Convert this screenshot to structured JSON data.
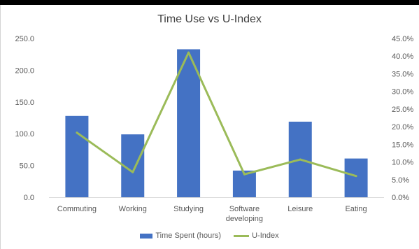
{
  "chart_data": {
    "type": "bar",
    "title": "Time Use vs U-Index",
    "categories": [
      "Commuting",
      "Working",
      "Studying",
      "Software developing",
      "Leisure",
      "Eating"
    ],
    "category_lines": [
      [
        "Commuting"
      ],
      [
        "Working"
      ],
      [
        "Studying"
      ],
      [
        "Software",
        "developing"
      ],
      [
        "Leisure"
      ],
      [
        "Eating"
      ]
    ],
    "series": [
      {
        "name": "Time Spent (hours)",
        "type": "bar",
        "axis": "left",
        "color": "#4472c4",
        "values": [
          128,
          99,
          233,
          42,
          119,
          61
        ]
      },
      {
        "name": "U-Index",
        "type": "line",
        "axis": "right",
        "color": "#9bbb59",
        "values": [
          18.3,
          7.1,
          41.0,
          6.5,
          10.7,
          6.0
        ]
      }
    ],
    "y_left": {
      "min": 0,
      "max": 250,
      "step": 50,
      "ticks": [
        "0.0",
        "50.0",
        "100.0",
        "150.0",
        "200.0",
        "250.0"
      ]
    },
    "y_right": {
      "min": 0,
      "max": 45,
      "step": 5,
      "ticks": [
        "0.0%",
        "5.0%",
        "10.0%",
        "15.0%",
        "20.0%",
        "25.0%",
        "30.0%",
        "35.0%",
        "40.0%",
        "45.0%"
      ]
    },
    "grid": false,
    "legend": "bottom"
  }
}
